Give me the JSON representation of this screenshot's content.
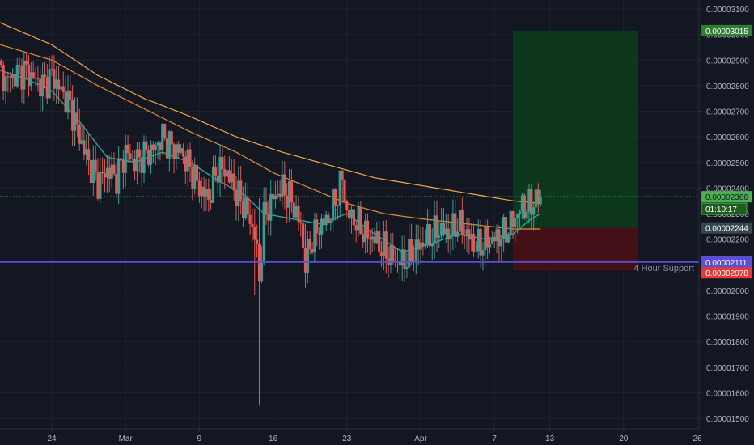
{
  "colors": {
    "background": "#131722",
    "grid": "#1e222d",
    "axis_text": "#b2b5be",
    "up_candle": "#26a69a",
    "down_candle": "#ef5350",
    "ma_fast": "#26a69a",
    "ma_slow_a": "#f7a642",
    "ma_slow_b": "#e0903a",
    "last_price": "#4caf50",
    "support_line": "#5b4fd6",
    "target_zone": "#0d3b1d",
    "stop_zone": "#4a0f17",
    "target_label_bg": "#2e7d32",
    "stop_label_bg": "#e53935",
    "entry_label_bg": "#37474f",
    "support_label_bg": "#5b4fd6"
  },
  "chart_data": {
    "type": "candlestick",
    "title": "",
    "xlabel": "",
    "ylabel": "",
    "ylim": [
      1.47e-05,
      3.12e-05
    ],
    "x_ticks": [
      "24",
      "Mar",
      "9",
      "16",
      "23",
      "Apr",
      "7",
      "13",
      "20",
      "26"
    ],
    "x_tick_index": [
      0,
      16,
      32,
      48,
      64,
      80,
      96,
      108,
      124,
      140
    ],
    "y_ticks": [
      "0.00003100",
      "0.00003000",
      "0.00002900",
      "0.00002800",
      "0.00002700",
      "0.00002600",
      "0.00002500",
      "0.00002400",
      "0.00002300",
      "0.00002200",
      "0.00002100",
      "0.00002000",
      "0.00001900",
      "0.00001800",
      "0.00001700",
      "0.00001600",
      "0.00001500"
    ],
    "y_tick_values": [
      3.1e-05,
      3e-05,
      2.9e-05,
      2.8e-05,
      2.7e-05,
      2.6e-05,
      2.5e-05,
      2.4e-05,
      2.3e-05,
      2.2e-05,
      2.1e-05,
      2e-05,
      1.9e-05,
      1.8e-05,
      1.7e-05,
      1.6e-05,
      1.5e-05
    ],
    "price_path": [
      [
        -13,
        2.9e-05
      ],
      [
        -10,
        2.82e-05
      ],
      [
        -6,
        2.86e-05
      ],
      [
        -2,
        2.8e-05
      ],
      [
        0,
        2.84e-05
      ],
      [
        2,
        2.78e-05
      ],
      [
        4,
        2.72e-05
      ],
      [
        6,
        2.6e-05
      ],
      [
        8,
        2.5e-05
      ],
      [
        10,
        2.42e-05
      ],
      [
        12,
        2.47e-05
      ],
      [
        14,
        2.44e-05
      ],
      [
        16,
        2.54e-05
      ],
      [
        18,
        2.5e-05
      ],
      [
        20,
        2.53e-05
      ],
      [
        22,
        2.55e-05
      ],
      [
        24,
        2.6e-05
      ],
      [
        26,
        2.56e-05
      ],
      [
        28,
        2.54e-05
      ],
      [
        30,
        2.48e-05
      ],
      [
        32,
        2.4e-05
      ],
      [
        34,
        2.36e-05
      ],
      [
        36,
        2.48e-05
      ],
      [
        38,
        2.46e-05
      ],
      [
        40,
        2.38e-05
      ],
      [
        42,
        2.32e-05
      ],
      [
        44,
        2.22e-05
      ],
      [
        45,
        2.05e-05
      ],
      [
        46,
        2.28e-05
      ],
      [
        48,
        2.36e-05
      ],
      [
        50,
        2.4e-05
      ],
      [
        52,
        2.35e-05
      ],
      [
        54,
        2.25e-05
      ],
      [
        55,
        2.1e-05
      ],
      [
        56,
        2.18e-05
      ],
      [
        58,
        2.25e-05
      ],
      [
        60,
        2.28e-05
      ],
      [
        62,
        2.38e-05
      ],
      [
        63,
        2.44e-05
      ],
      [
        64,
        2.3e-05
      ],
      [
        66,
        2.27e-05
      ],
      [
        68,
        2.22e-05
      ],
      [
        70,
        2.2e-05
      ],
      [
        72,
        2.16e-05
      ],
      [
        74,
        2.12e-05
      ],
      [
        76,
        2.11e-05
      ],
      [
        78,
        2.14e-05
      ],
      [
        80,
        2.18e-05
      ],
      [
        82,
        2.21e-05
      ],
      [
        84,
        2.24e-05
      ],
      [
        86,
        2.22e-05
      ],
      [
        88,
        2.26e-05
      ],
      [
        90,
        2.22e-05
      ],
      [
        92,
        2.17e-05
      ],
      [
        94,
        2.19e-05
      ],
      [
        96,
        2.2e-05
      ],
      [
        98,
        2.22e-05
      ],
      [
        100,
        2.27e-05
      ],
      [
        102,
        2.33e-05
      ],
      [
        103,
        2.32e-05
      ],
      [
        104,
        2.34e-05
      ],
      [
        106,
        2.36e-05
      ]
    ],
    "wicks": [
      {
        "i": 45,
        "low": 1.55e-05,
        "high": 2.36e-05
      },
      {
        "i": 44,
        "low": 1.98e-05,
        "high": 2.32e-05
      },
      {
        "i": 55,
        "low": 2.01e-05,
        "high": 2.26e-05
      },
      {
        "i": 63,
        "low": 2.34e-05,
        "high": 2.47e-05
      }
    ],
    "ma_fast": [
      [
        -13,
        2.87e-05
      ],
      [
        -6,
        2.83e-05
      ],
      [
        0,
        2.78e-05
      ],
      [
        6,
        2.66e-05
      ],
      [
        12,
        2.52e-05
      ],
      [
        18,
        2.5e-05
      ],
      [
        24,
        2.54e-05
      ],
      [
        30,
        2.5e-05
      ],
      [
        36,
        2.43e-05
      ],
      [
        42,
        2.37e-05
      ],
      [
        46,
        2.3e-05
      ],
      [
        52,
        2.28e-05
      ],
      [
        58,
        2.26e-05
      ],
      [
        64,
        2.3e-05
      ],
      [
        70,
        2.22e-05
      ],
      [
        76,
        2.15e-05
      ],
      [
        82,
        2.18e-05
      ],
      [
        88,
        2.22e-05
      ],
      [
        94,
        2.2e-05
      ],
      [
        100,
        2.22e-05
      ],
      [
        104,
        2.28e-05
      ],
      [
        106,
        2.3e-05
      ]
    ],
    "ma_slow_a": [
      [
        -13,
        3.06e-05
      ],
      [
        0,
        2.96e-05
      ],
      [
        10,
        2.84e-05
      ],
      [
        20,
        2.75e-05
      ],
      [
        30,
        2.68e-05
      ],
      [
        40,
        2.6e-05
      ],
      [
        50,
        2.54e-05
      ],
      [
        60,
        2.49e-05
      ],
      [
        70,
        2.44e-05
      ],
      [
        80,
        2.41e-05
      ],
      [
        90,
        2.38e-05
      ],
      [
        100,
        2.35e-05
      ],
      [
        106,
        2.34e-05
      ]
    ],
    "ma_slow_b": [
      [
        -13,
        2.97e-05
      ],
      [
        0,
        2.9e-05
      ],
      [
        10,
        2.8e-05
      ],
      [
        20,
        2.71e-05
      ],
      [
        30,
        2.62e-05
      ],
      [
        40,
        2.54e-05
      ],
      [
        48,
        2.46e-05
      ],
      [
        56,
        2.4e-05
      ],
      [
        64,
        2.34e-05
      ],
      [
        72,
        2.3e-05
      ],
      [
        80,
        2.28e-05
      ],
      [
        90,
        2.26e-05
      ],
      [
        100,
        2.24e-05
      ],
      [
        106,
        2.24e-05
      ]
    ],
    "last_price": 2.366e-05,
    "entry": 2.244e-05,
    "target": 3.015e-05,
    "stop": 2.078e-05,
    "support": 2.111e-05,
    "position_x_range": [
      100,
      127
    ]
  },
  "labels": {
    "target": "0.00003015",
    "last_price": "0.00002366",
    "countdown": "01:10:17",
    "entry": "0.00002244",
    "support": "0.00002111",
    "stop": "0.00002078",
    "support_caption": "4 Hour Support"
  }
}
